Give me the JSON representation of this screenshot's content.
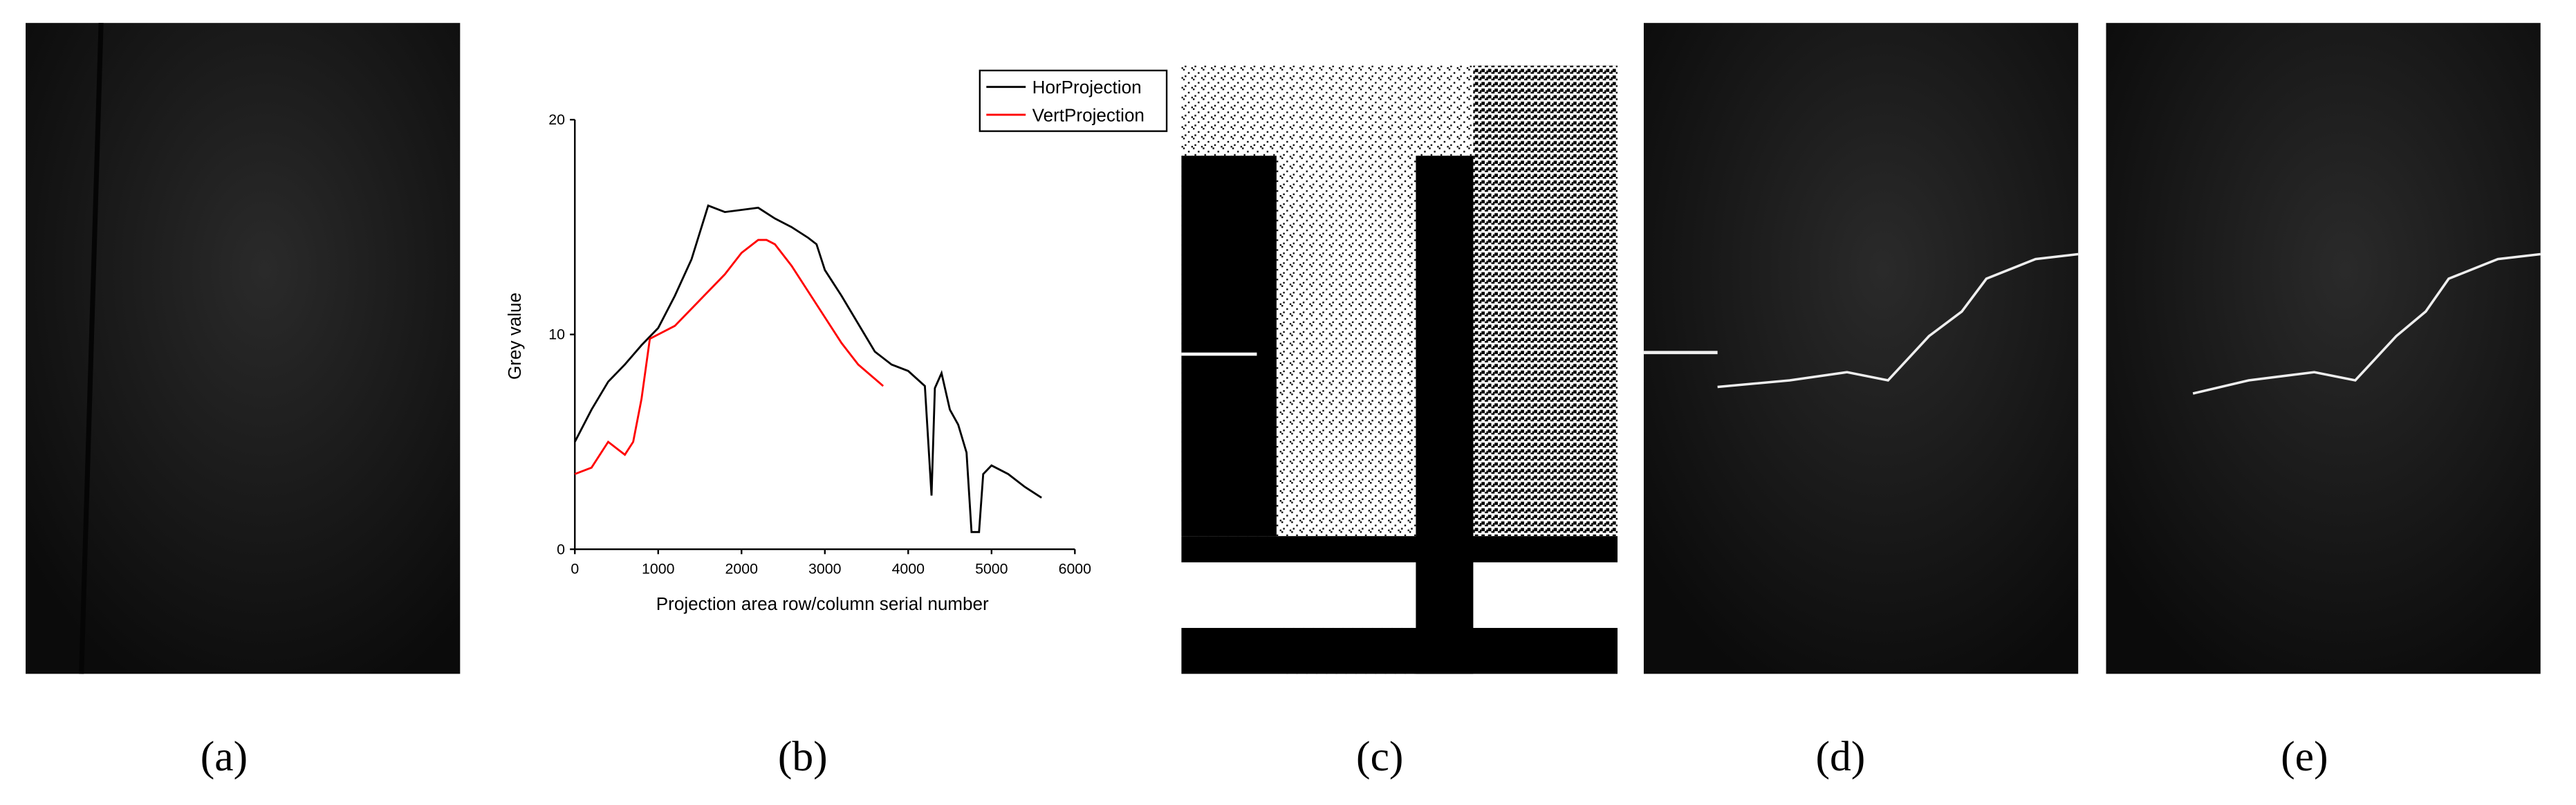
{
  "panels": [
    {
      "label": "(a)"
    },
    {
      "label": "(b)"
    },
    {
      "label": "(c)"
    },
    {
      "label": "(d)"
    },
    {
      "label": "(e)"
    }
  ],
  "chart_data": {
    "type": "line",
    "y_label": "Grey value",
    "x_label": "Projection area row/column serial number",
    "xlim": [
      0,
      6000
    ],
    "xticks": [
      0,
      1000,
      2000,
      3000,
      4000,
      5000,
      6000
    ],
    "ylim": [
      0,
      20
    ],
    "yticks": [
      0,
      10,
      20
    ],
    "legend": "top-right",
    "series": [
      {
        "name": "HorProjection",
        "color": "#000000",
        "x": [
          0,
          200,
          400,
          600,
          800,
          1000,
          1200,
          1400,
          1600,
          1800,
          2000,
          2200,
          2400,
          2600,
          2800,
          2900,
          3000,
          3200,
          3400,
          3600,
          3800,
          4000,
          4200,
          4280,
          4320,
          4400,
          4500,
          4600,
          4700,
          4760,
          4850,
          4900,
          5000,
          5200,
          5400,
          5600
        ],
        "values": [
          5.0,
          6.5,
          7.8,
          8.6,
          9.5,
          10.3,
          11.8,
          13.5,
          16.0,
          15.7,
          15.8,
          15.9,
          15.4,
          15.0,
          14.5,
          14.2,
          13.0,
          11.8,
          10.5,
          9.2,
          8.6,
          8.3,
          7.6,
          2.5,
          7.5,
          8.2,
          6.5,
          5.8,
          4.5,
          0.8,
          0.8,
          3.5,
          3.9,
          3.5,
          2.9,
          2.4
        ]
      },
      {
        "name": "VertProjection",
        "color": "#ff0000",
        "x": [
          0,
          200,
          400,
          500,
          600,
          700,
          800,
          900,
          1000,
          1200,
          1400,
          1600,
          1800,
          2000,
          2200,
          2300,
          2400,
          2600,
          2800,
          3000,
          3200,
          3400,
          3700
        ],
        "values": [
          3.5,
          3.8,
          5.0,
          4.7,
          4.4,
          5.0,
          7.0,
          9.8,
          10.0,
          10.4,
          11.2,
          12.0,
          12.8,
          13.8,
          14.4,
          14.4,
          14.2,
          13.2,
          12.0,
          10.8,
          9.6,
          8.6,
          7.6
        ]
      }
    ]
  }
}
